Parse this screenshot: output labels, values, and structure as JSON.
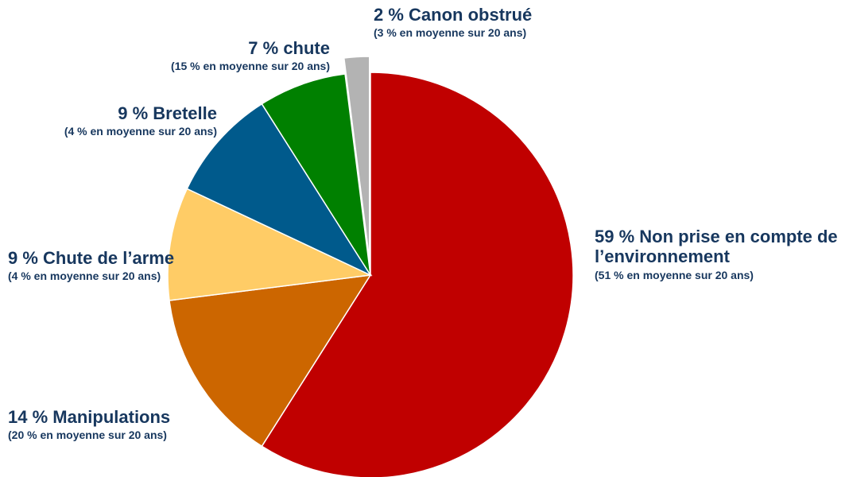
{
  "chart_data": {
    "type": "pie",
    "categories": [
      "Non prise en compte de l’environnement",
      "Manipulations",
      "Chute de l’arme",
      "Bretelle",
      "chute",
      "Canon obstrué"
    ],
    "values": [
      59,
      14,
      9,
      9,
      7,
      2
    ],
    "value_labels": [
      "59 %",
      "14 %",
      "9 %",
      "9 %",
      "7 %",
      "2 %"
    ],
    "colors": [
      "#c00000",
      "#cc6600",
      "#ffcc66",
      "#005a8c",
      "#008000",
      "#b3b3b3"
    ],
    "exploded": [
      false,
      false,
      false,
      false,
      false,
      true
    ],
    "average_20_years": [
      51,
      20,
      4,
      4,
      15,
      3
    ],
    "average_20_years_labels": [
      "(51 % en moyenne sur 20 ans)",
      "(20 % en moyenne sur 20 ans)",
      "(4 % en moyenne sur 20 ans)",
      "(4 % en moyenne sur 20 ans)",
      "(15 % en moyenne sur 20 ans)",
      "(3 % en moyenne sur 20 ans)"
    ]
  }
}
